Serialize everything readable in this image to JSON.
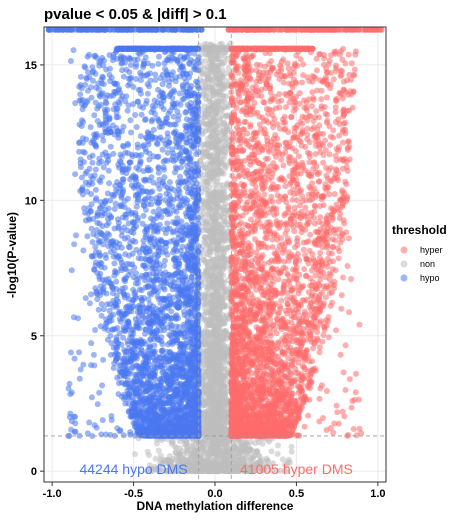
{
  "chart_data": {
    "type": "scatter",
    "title": "pvalue < 0.05 & |diff| > 0.1",
    "xlabel": "DNA methylation difference",
    "ylabel": "-log10(P-value)",
    "xlim": [
      -1.05,
      1.05
    ],
    "ylim": [
      -0.4,
      16.4
    ],
    "x_ticks": [
      "-1.0",
      "-0.5",
      "0.0",
      "0.5",
      "1.0"
    ],
    "x_tick_values": [
      -1.0,
      -0.5,
      0.0,
      0.5,
      1.0
    ],
    "y_ticks": [
      "0",
      "5",
      "10",
      "15"
    ],
    "y_tick_values": [
      0,
      5,
      10,
      15
    ],
    "threshold_lines": {
      "x": [
        -0.1,
        0.1
      ],
      "y": 1.3
    },
    "grid": true,
    "legend": {
      "title": "threshold",
      "placement": "right",
      "entries": [
        {
          "label": "hyper",
          "color": "#FF6B6B"
        },
        {
          "label": "non",
          "color": "#BEBEBE"
        },
        {
          "label": "hypo",
          "color": "#4A78F0"
        }
      ]
    },
    "annotations": [
      {
        "text": "44244 hypo DMS",
        "x": -0.5,
        "y": -0.1,
        "color": "#4A78F0"
      },
      {
        "text": "41005 hyper DMS",
        "x": 0.5,
        "y": -0.1,
        "color": "#FF6B6B"
      }
    ],
    "series": [
      {
        "name": "hyper",
        "color": "#FF6B6B",
        "count": 41005
      },
      {
        "name": "non",
        "color": "#BEBEBE"
      },
      {
        "name": "hypo",
        "color": "#4A78F0",
        "count": 44244
      }
    ]
  }
}
